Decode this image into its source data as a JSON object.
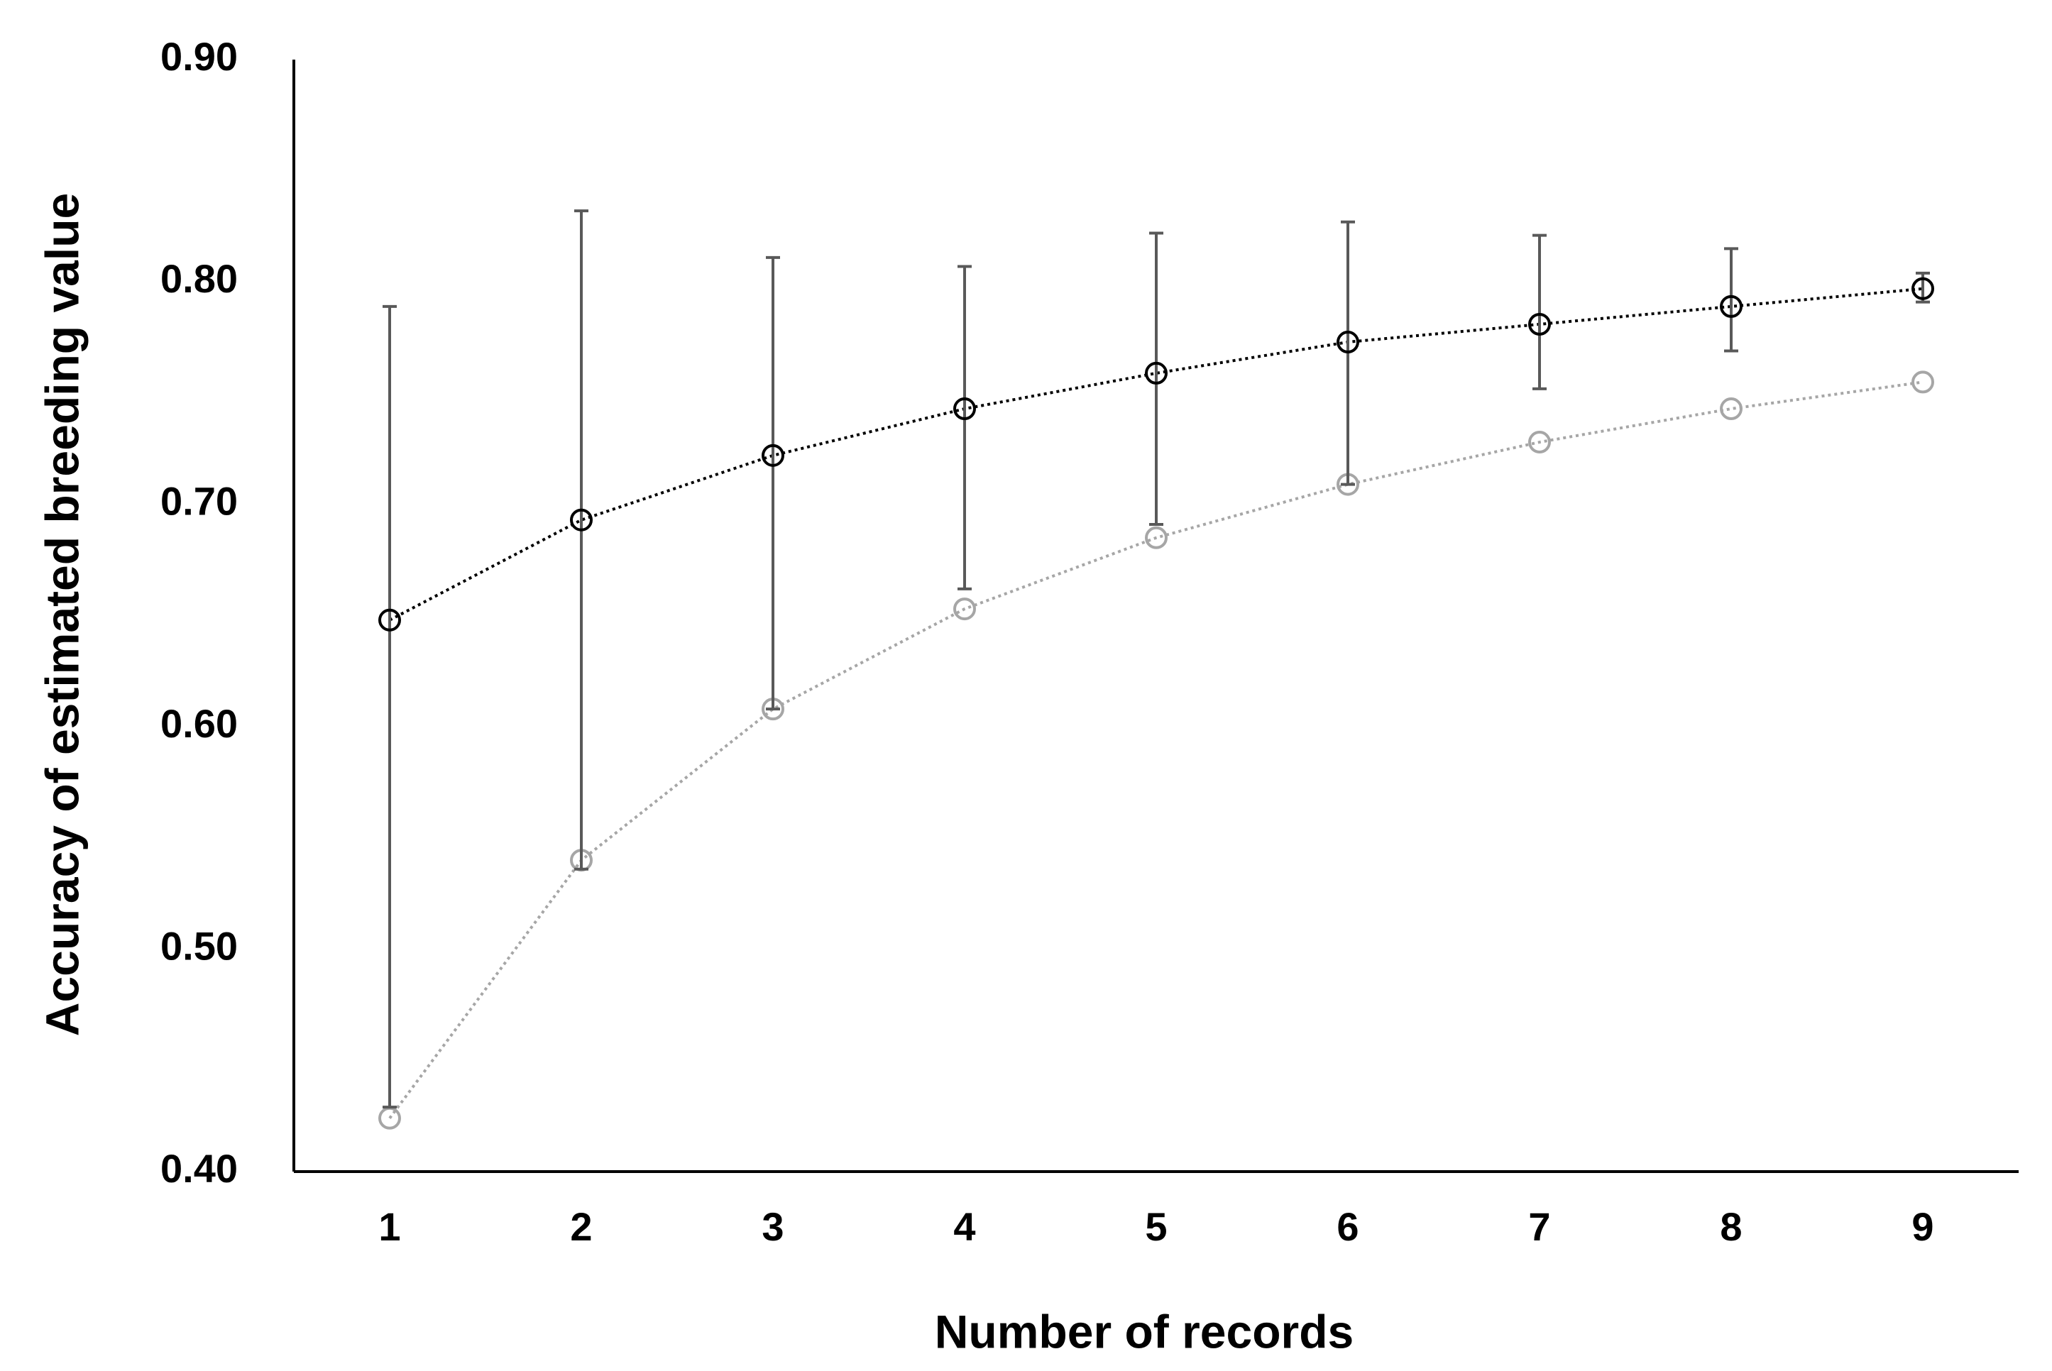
{
  "chart_data": {
    "type": "line",
    "x_label": "Number of records",
    "y_label": "Accuracy of estimated breeding value",
    "categories": [
      "1",
      "2",
      "3",
      "4",
      "5",
      "6",
      "7",
      "8",
      "9"
    ],
    "series": [
      {
        "color": "#000000",
        "values": [
          0.648,
          0.693,
          0.722,
          0.743,
          0.759,
          0.773,
          0.781,
          0.789,
          0.797
        ],
        "lower": [
          0.429,
          0.536,
          0.608,
          0.662,
          0.691,
          0.709,
          0.752,
          0.769,
          0.791
        ],
        "upper": [
          0.789,
          0.832,
          0.811,
          0.807,
          0.822,
          0.827,
          0.821,
          0.815,
          0.804
        ]
      },
      {
        "color": "#a6a6a6",
        "values": [
          0.424,
          0.54,
          0.608,
          0.653,
          0.685,
          0.709,
          0.728,
          0.743,
          0.755
        ]
      }
    ],
    "ylim": [
      0.4,
      0.9
    ],
    "yticks": [
      {
        "value": 0.4,
        "label": "0.40"
      },
      {
        "value": 0.5,
        "label": "0.50"
      },
      {
        "value": 0.6,
        "label": "0.60"
      },
      {
        "value": 0.7,
        "label": "0.70"
      },
      {
        "value": 0.8,
        "label": "0.80"
      },
      {
        "value": 0.9,
        "label": "0.90"
      }
    ],
    "grid": false
  }
}
